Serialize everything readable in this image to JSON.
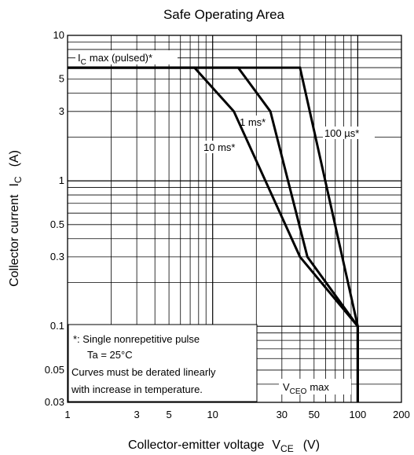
{
  "chart_data": {
    "type": "line",
    "title": "Safe Operating Area",
    "xlabel": {
      "main": "Collector-emitter voltage",
      "symbol": "V",
      "subscript": "CE",
      "unit": "(V)"
    },
    "ylabel": {
      "main": "Collector current",
      "symbol": "I",
      "subscript": "C",
      "unit": "(A)"
    },
    "x_scale": "log",
    "y_scale": "log",
    "xlim": [
      1,
      200
    ],
    "ylim": [
      0.03,
      10
    ],
    "x_ticks": [
      {
        "value": 1,
        "label": "1"
      },
      {
        "value": 3,
        "label": "3"
      },
      {
        "value": 5,
        "label": "5"
      },
      {
        "value": 10,
        "label": "10"
      },
      {
        "value": 30,
        "label": "30"
      },
      {
        "value": 50,
        "label": "50"
      },
      {
        "value": 100,
        "label": "100"
      },
      {
        "value": 200,
        "label": "200"
      }
    ],
    "y_ticks": [
      {
        "value": 0.03,
        "label": "0.03"
      },
      {
        "value": 0.05,
        "label": "0.05"
      },
      {
        "value": 0.1,
        "label": "0.1"
      },
      {
        "value": 0.3,
        "label": "0.3"
      },
      {
        "value": 0.5,
        "label": "0.5"
      },
      {
        "value": 1,
        "label": "1"
      },
      {
        "value": 3,
        "label": "3"
      },
      {
        "value": 5,
        "label": "5"
      },
      {
        "value": 10,
        "label": "10"
      }
    ],
    "grid": true,
    "series": [
      {
        "name": "10 ms*",
        "x": [
          1,
          7.5,
          14,
          40,
          100,
          100
        ],
        "y": [
          6,
          6,
          3,
          0.3,
          0.1,
          0.03
        ]
      },
      {
        "name": "1 ms*",
        "x": [
          1,
          15,
          25,
          45,
          100,
          100
        ],
        "y": [
          6,
          6,
          3,
          0.3,
          0.1,
          0.03
        ]
      },
      {
        "name": "100 µs*",
        "x": [
          1,
          40,
          100,
          100
        ],
        "y": [
          6,
          6,
          0.1,
          0.03
        ]
      }
    ],
    "annotations": [
      {
        "text": "max (pulsed)*",
        "symbol": "I",
        "subscript": "C",
        "x": 1,
        "y": 6
      },
      {
        "text": "max",
        "symbol": "V",
        "subscript": "CEO",
        "x": 60,
        "y": 0.04
      }
    ],
    "note_lines": [
      "*: Single nonrepetitive pulse",
      "Ta = 25°C",
      "Curves must be derated linearly",
      "with increase in temperature."
    ]
  }
}
